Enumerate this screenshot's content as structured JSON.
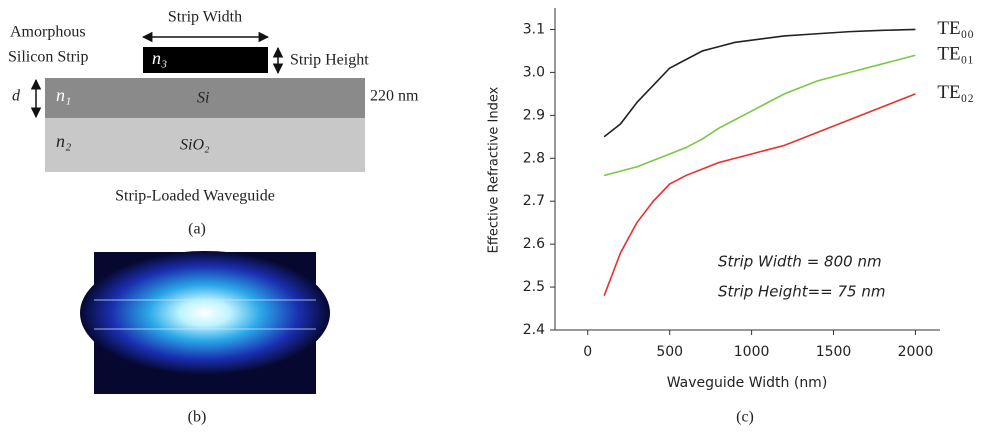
{
  "diagram": {
    "strip_label_line1": "Amorphous",
    "strip_label_line2": "Silicon Strip",
    "strip_width": "Strip Width",
    "strip_height": "Strip Height",
    "d": "d",
    "n3": "n₃",
    "n1": "n₁",
    "si": "Si",
    "thickness": "220 nm",
    "n2": "n₂",
    "sio2": "SiO₂",
    "caption": "Strip-Loaded Waveguide",
    "label": "(a)"
  },
  "image": {
    "label": "(b)"
  },
  "chart_data": {
    "type": "line",
    "label": "(c)",
    "x_label": "Waveguide Width (nm)",
    "y_label": "Effective Refractive Index",
    "x": [
      100,
      200,
      300,
      400,
      500,
      600,
      700,
      800,
      900,
      1000,
      1200,
      1400,
      1600,
      1800,
      2000
    ],
    "series": [
      {
        "name": "TE₀₀",
        "color": "#222222",
        "values": [
          2.85,
          2.88,
          2.93,
          2.97,
          3.01,
          3.03,
          3.05,
          3.06,
          3.07,
          3.075,
          3.085,
          3.09,
          3.095,
          3.098,
          3.1
        ]
      },
      {
        "name": "TE₀₁",
        "color": "#7ac943",
        "values": [
          2.76,
          2.77,
          2.78,
          2.795,
          2.81,
          2.825,
          2.845,
          2.87,
          2.89,
          2.91,
          2.95,
          2.98,
          3.0,
          3.02,
          3.04
        ]
      },
      {
        "name": "TE₀₂",
        "color": "#e8312f",
        "values": [
          2.48,
          2.58,
          2.65,
          2.7,
          2.74,
          2.76,
          2.775,
          2.79,
          2.8,
          2.81,
          2.83,
          2.86,
          2.89,
          2.92,
          2.95
        ]
      }
    ],
    "xlim": [
      -200,
      2150
    ],
    "ylim": [
      2.4,
      3.15
    ],
    "xticks": [
      0,
      500,
      1000,
      1500,
      2000
    ],
    "yticks": [
      2.4,
      2.5,
      2.6,
      2.7,
      2.8,
      2.9,
      {
        "value": 3,
        "label": "3.0"
      },
      3.1
    ],
    "annotations": [
      "Strip Width = 800 nm",
      "Strip Height== 75 nm"
    ]
  }
}
